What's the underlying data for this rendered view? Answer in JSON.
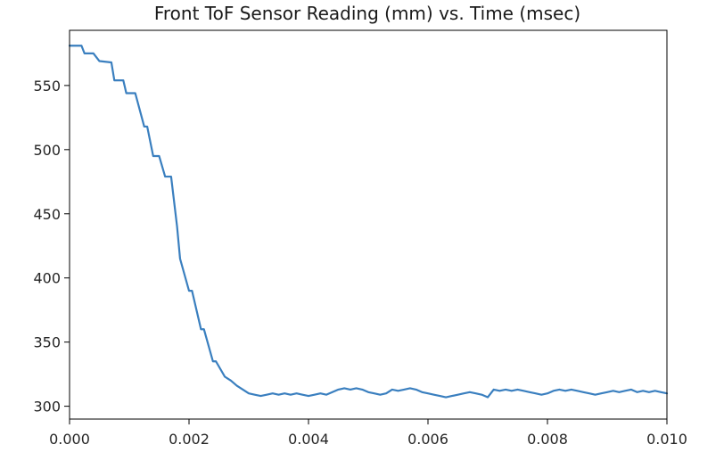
{
  "chart_data": {
    "type": "line",
    "title": "Front ToF Sensor Reading (mm) vs. Time (msec)",
    "xlabel": "",
    "ylabel": "",
    "xlim": [
      0,
      0.01
    ],
    "ylim": [
      290,
      593
    ],
    "x_ticks": [
      0.0,
      0.002,
      0.004,
      0.006,
      0.008,
      0.01
    ],
    "x_tick_labels": [
      "0.000",
      "0.002",
      "0.004",
      "0.006",
      "0.008",
      "0.010"
    ],
    "y_ticks": [
      300,
      350,
      400,
      450,
      500,
      550
    ],
    "y_tick_labels": [
      "300",
      "350",
      "400",
      "450",
      "500",
      "550"
    ],
    "grid": false,
    "line_color": "#3a7fbf",
    "series": [
      {
        "x": [
          0.0,
          0.0002,
          0.00025,
          0.0004,
          0.0005,
          0.0007,
          0.00075,
          0.0009,
          0.00095,
          0.0011,
          0.00125,
          0.0013,
          0.0014,
          0.0015,
          0.0016,
          0.0017,
          0.0018,
          0.00185,
          0.002,
          0.00205,
          0.0022,
          0.00225,
          0.0024,
          0.00245,
          0.0026,
          0.0027,
          0.0028,
          0.003,
          0.0031,
          0.0032,
          0.0033,
          0.0034,
          0.0035,
          0.0036,
          0.0037,
          0.0038,
          0.0039,
          0.004,
          0.0041,
          0.0042,
          0.0043,
          0.0044,
          0.0045,
          0.0046,
          0.0047,
          0.0048,
          0.0049,
          0.005,
          0.0051,
          0.0052,
          0.0053,
          0.0054,
          0.0055,
          0.0056,
          0.0057,
          0.0058,
          0.0059,
          0.006,
          0.0061,
          0.0062,
          0.0063,
          0.0064,
          0.0065,
          0.0066,
          0.0067,
          0.0068,
          0.0069,
          0.007,
          0.0071,
          0.0072,
          0.0073,
          0.0074,
          0.0075,
          0.0076,
          0.0077,
          0.0078,
          0.0079,
          0.008,
          0.0081,
          0.0082,
          0.0083,
          0.0084,
          0.0085,
          0.0086,
          0.0087,
          0.0088,
          0.0089,
          0.009,
          0.0091,
          0.0092,
          0.0093,
          0.0094,
          0.0095,
          0.0096,
          0.0097,
          0.0098,
          0.0099,
          0.01
        ],
        "y": [
          581,
          581,
          575,
          575,
          569,
          568,
          554,
          554,
          544,
          544,
          518,
          518,
          495,
          495,
          479,
          479,
          440,
          415,
          390,
          390,
          360,
          360,
          335,
          335,
          323,
          320,
          316,
          310,
          309,
          308,
          309,
          310,
          309,
          310,
          309,
          310,
          309,
          308,
          309,
          310,
          309,
          311,
          313,
          314,
          313,
          314,
          313,
          311,
          310,
          309,
          310,
          313,
          312,
          313,
          314,
          313,
          311,
          310,
          309,
          308,
          307,
          308,
          309,
          310,
          311,
          310,
          309,
          307,
          313,
          312,
          313,
          312,
          313,
          312,
          311,
          310,
          309,
          310,
          312,
          313,
          312,
          313,
          312,
          311,
          310,
          309,
          310,
          311,
          312,
          311,
          312,
          313,
          311,
          312,
          311,
          312,
          311,
          310
        ]
      }
    ]
  }
}
